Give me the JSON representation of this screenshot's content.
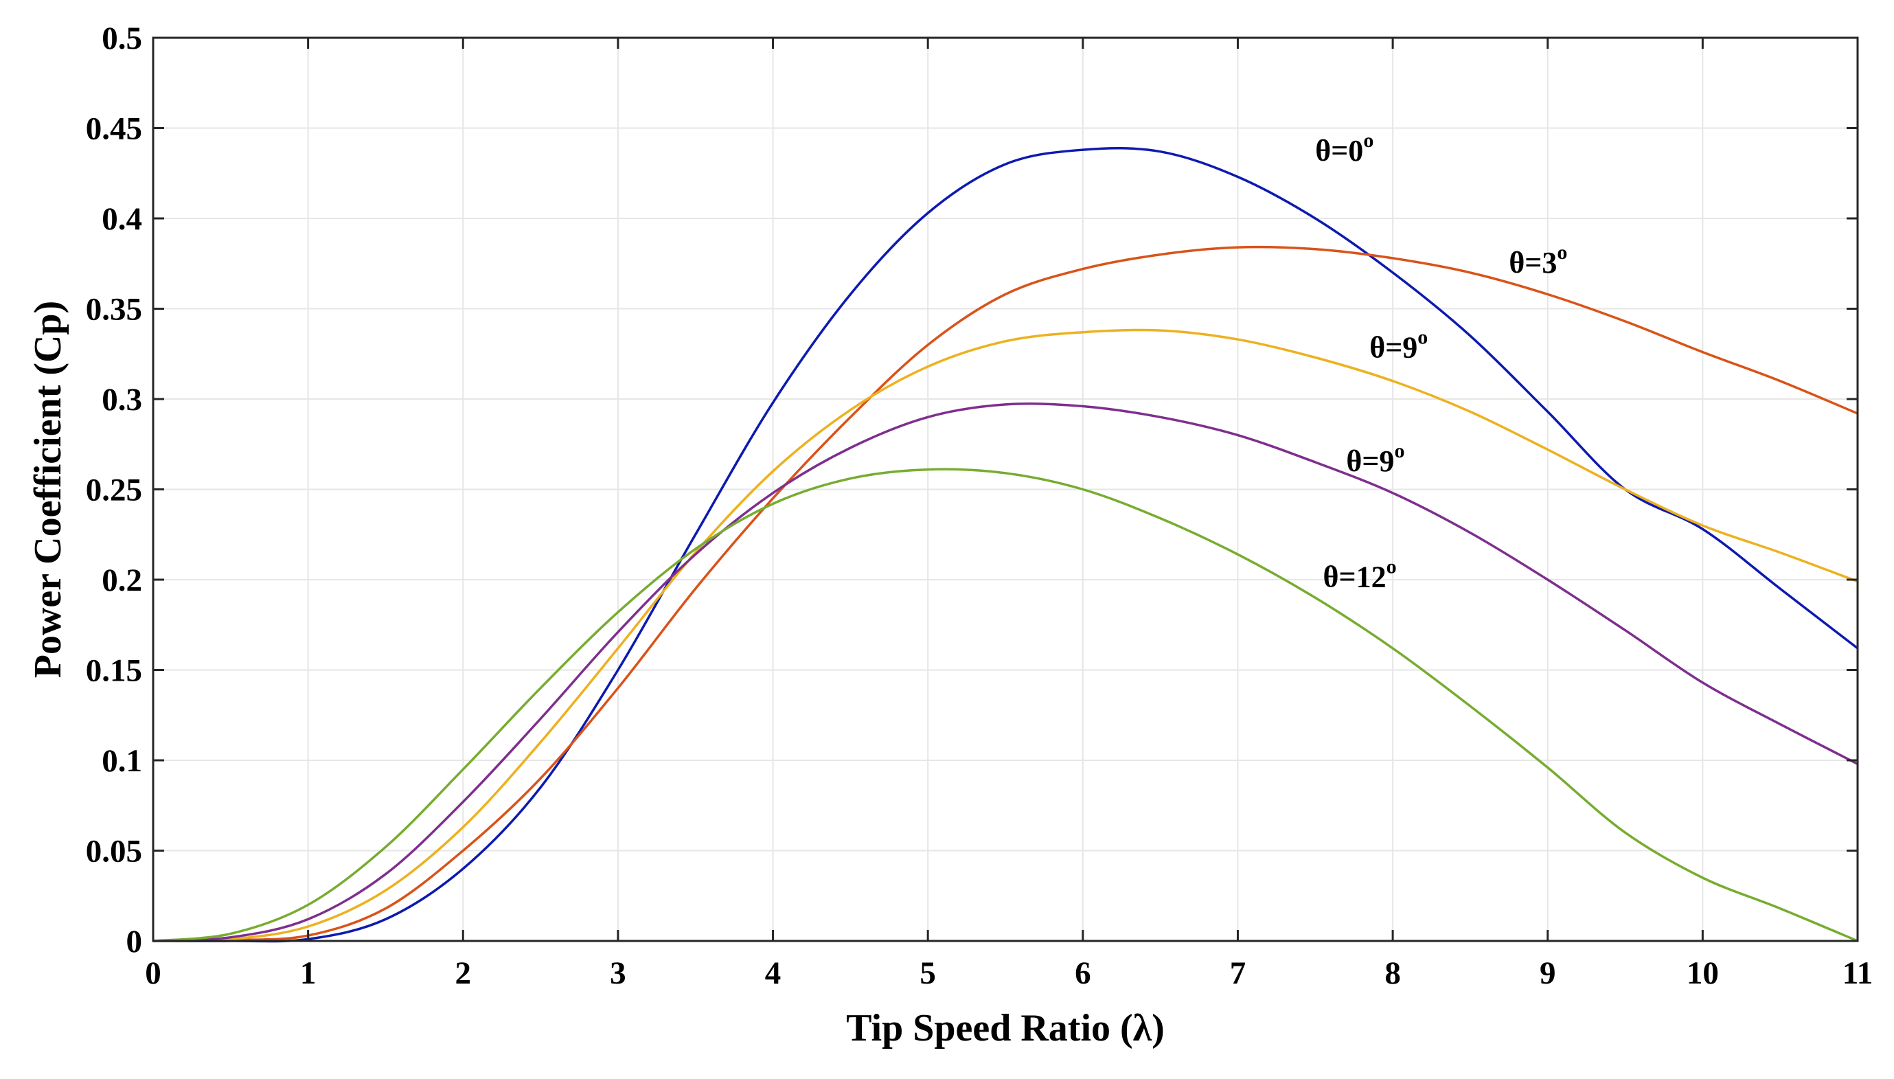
{
  "chart_data": {
    "type": "line",
    "title": "",
    "xlabel": "Tip Speed Ratio (λ)",
    "ylabel": "Power Coefficient (Cp)",
    "xlim": [
      0,
      11
    ],
    "ylim": [
      0,
      0.5
    ],
    "grid": true,
    "x_ticks": [
      0,
      1,
      2,
      3,
      4,
      5,
      6,
      7,
      8,
      9,
      10,
      11
    ],
    "x_tick_labels": [
      "0",
      "1",
      "2",
      "3",
      "4",
      "5",
      "6",
      "7",
      "8",
      "9",
      "10",
      "11"
    ],
    "y_ticks": [
      0,
      0.05,
      0.1,
      0.15,
      0.2,
      0.25,
      0.3,
      0.35,
      0.4,
      0.45,
      0.5
    ],
    "y_tick_labels": [
      "0",
      "0.05",
      "0.1",
      "0.15",
      "0.2",
      "0.25",
      "0.3",
      "0.35",
      "0.4",
      "0.45",
      "0.5"
    ],
    "x": [
      0,
      0.5,
      1,
      1.5,
      2,
      2.5,
      3,
      3.5,
      4,
      4.5,
      5,
      5.5,
      6,
      6.5,
      7,
      7.5,
      8,
      8.5,
      9,
      9.5,
      10,
      10.5,
      11
    ],
    "series": [
      {
        "name": "theta=0",
        "label_main": "θ=0",
        "label_sup": "o",
        "color": "#0d1ab0",
        "label_x": 7.5,
        "label_y": 0.432,
        "values": [
          0,
          0,
          0.001,
          0.012,
          0.04,
          0.085,
          0.15,
          0.225,
          0.298,
          0.358,
          0.403,
          0.43,
          0.438,
          0.437,
          0.423,
          0.4,
          0.37,
          0.335,
          0.293,
          0.25,
          0.228,
          0.195,
          0.162
        ]
      },
      {
        "name": "theta=3",
        "label_main": "θ=3",
        "label_sup": "o",
        "color": "#d95319",
        "label_x": 8.75,
        "label_y": 0.37,
        "values": [
          0,
          0.0005,
          0.003,
          0.018,
          0.05,
          0.09,
          0.14,
          0.195,
          0.245,
          0.29,
          0.33,
          0.358,
          0.372,
          0.38,
          0.384,
          0.383,
          0.378,
          0.37,
          0.358,
          0.343,
          0.326,
          0.31,
          0.292
        ]
      },
      {
        "name": "theta=9 (upper)",
        "label_main": "θ=9",
        "label_sup": "o",
        "color": "#edb120",
        "label_x": 7.85,
        "label_y": 0.323,
        "values": [
          0,
          0.001,
          0.008,
          0.028,
          0.063,
          0.11,
          0.162,
          0.215,
          0.26,
          0.294,
          0.318,
          0.332,
          0.337,
          0.338,
          0.333,
          0.323,
          0.31,
          0.293,
          0.272,
          0.25,
          0.23,
          0.215,
          0.199
        ]
      },
      {
        "name": "theta=9 (lower)",
        "label_main": "θ=9",
        "label_sup": "o",
        "color": "#7e2f8e",
        "label_x": 7.7,
        "label_y": 0.26,
        "values": [
          0,
          0.002,
          0.012,
          0.037,
          0.077,
          0.123,
          0.171,
          0.214,
          0.248,
          0.273,
          0.29,
          0.297,
          0.296,
          0.29,
          0.28,
          0.265,
          0.248,
          0.226,
          0.2,
          0.172,
          0.143,
          0.12,
          0.098
        ]
      },
      {
        "name": "theta=12",
        "label_main": "θ=12",
        "label_sup": "o",
        "color": "#77ac30",
        "label_x": 7.55,
        "label_y": 0.196,
        "values": [
          0,
          0.004,
          0.02,
          0.052,
          0.095,
          0.14,
          0.182,
          0.217,
          0.242,
          0.256,
          0.261,
          0.259,
          0.25,
          0.234,
          0.214,
          0.19,
          0.162,
          0.13,
          0.096,
          0.06,
          0.035,
          0.018,
          0
        ]
      }
    ]
  }
}
